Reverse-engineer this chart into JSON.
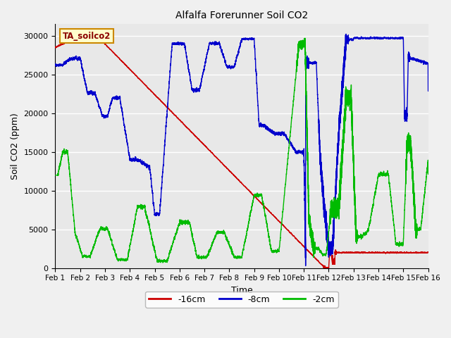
{
  "title": "Alfalfa Forerunner Soil CO2",
  "ylabel": "Soil CO2 (ppm)",
  "xlabel": "Time",
  "label_box_text": "TA_soilco2",
  "ylim": [
    0,
    31500
  ],
  "xlim": [
    0,
    15
  ],
  "xtick_labels": [
    "Feb 1",
    "Feb 2",
    "Feb 3",
    "Feb 4",
    "Feb 5",
    "Feb 6",
    "Feb 7",
    "Feb 8",
    "Feb 9",
    "Feb 10",
    "Feb 11",
    "Feb 12",
    "Feb 13",
    "Feb 14",
    "Feb 15",
    "Feb 16"
  ],
  "xtick_positions": [
    0,
    1,
    2,
    3,
    4,
    5,
    6,
    7,
    8,
    9,
    10,
    11,
    12,
    13,
    14,
    15
  ],
  "ytick_labels": [
    "0",
    "5000",
    "10000",
    "15000",
    "20000",
    "25000",
    "30000"
  ],
  "ytick_positions": [
    0,
    5000,
    10000,
    15000,
    20000,
    25000,
    30000
  ],
  "red_color": "#cc0000",
  "blue_color": "#0000cc",
  "green_color": "#00bb00",
  "bg_color": "#e8e8e8",
  "grid_color": "#ffffff",
  "fig_bg_color": "#f0f0f0",
  "legend_entries": [
    "-16cm",
    "-8cm",
    "-2cm"
  ],
  "label_box_facecolor": "#ffffcc",
  "label_box_edgecolor": "#cc8800",
  "label_box_textcolor": "#8B0000"
}
